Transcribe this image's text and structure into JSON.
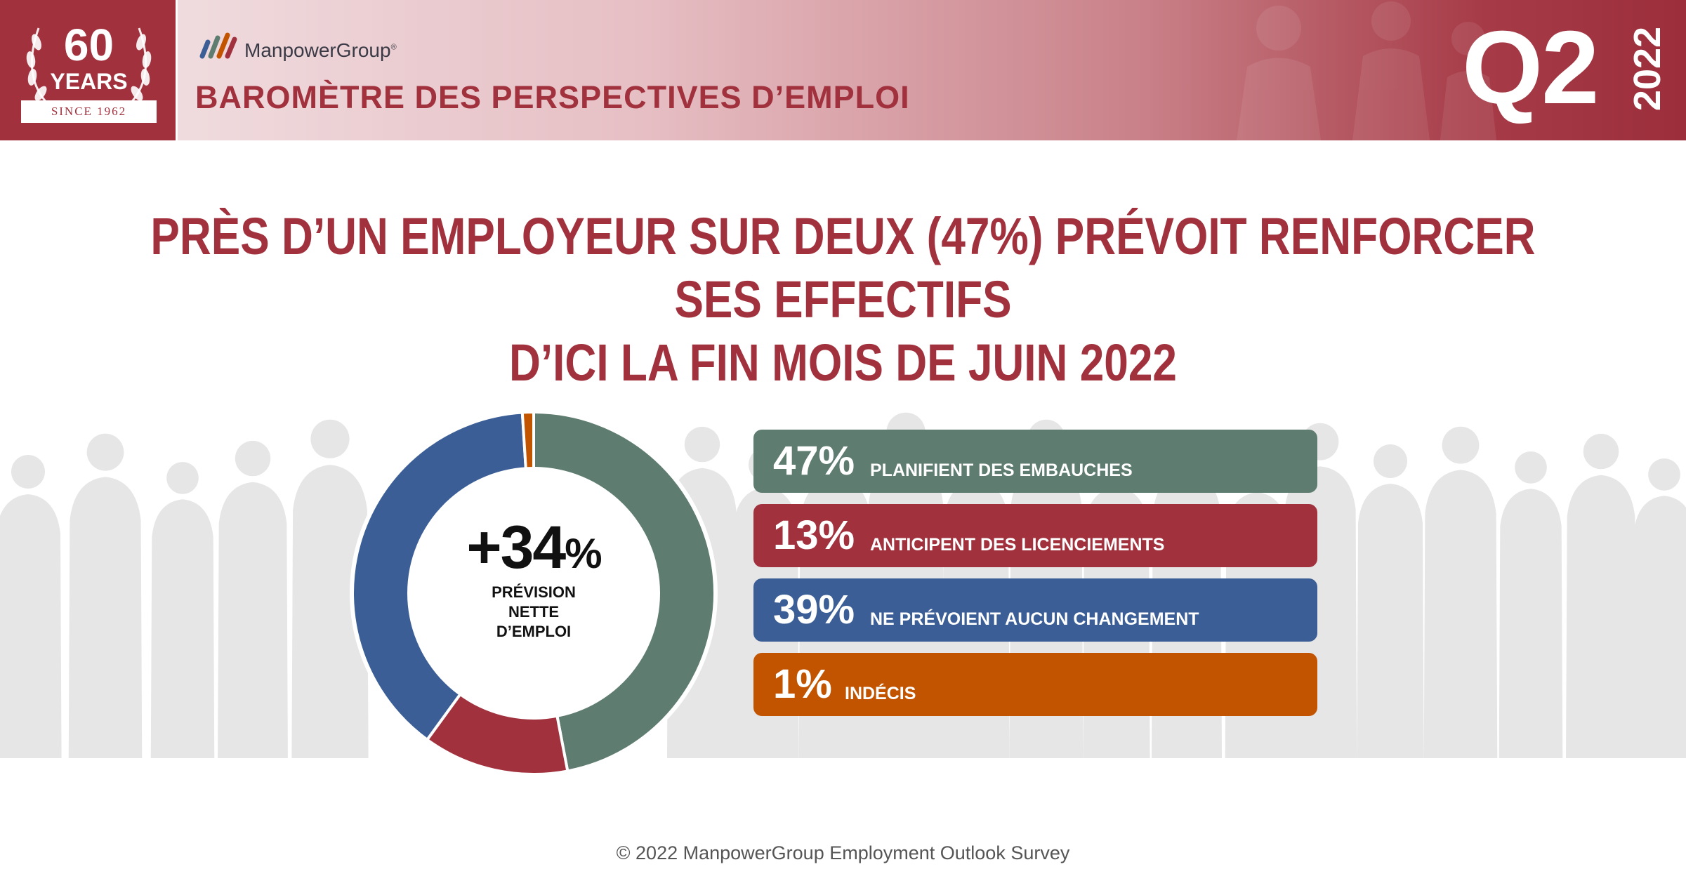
{
  "header": {
    "badge": {
      "number": "60",
      "years": "YEARS",
      "since": "SINCE 1962"
    },
    "brand": "ManpowerGroup",
    "brand_mark": "®",
    "subtitle": "BAROMÈTRE DES PERSPECTIVES D’EMPLOI",
    "quarter": "Q2",
    "year": "2022"
  },
  "headline": {
    "line1": "PRÈS D’UN EMPLOYEUR SUR DEUX (47%) PRÉVOIT RENFORCER SES EFFECTIFS",
    "line2": "D’ICI LA FIN MOIS DE JUIN 2022"
  },
  "center": {
    "value": "+34",
    "unit": "%",
    "label_line1": "PRÉVISION",
    "label_line2": "NETTE",
    "label_line3": "D’EMPLOI"
  },
  "chart_data": {
    "type": "pie",
    "donut": true,
    "title": "",
    "unit": "%",
    "slices": [
      {
        "label": "PLANIFIENT DES EMBAUCHES",
        "value": 47,
        "display": "47%",
        "color": "#5e7c6f"
      },
      {
        "label": "ANTICIPENT DES LICENCIEMENTS",
        "value": 13,
        "display": "13%",
        "color": "#a2313e"
      },
      {
        "label": "NE PRÉVOIENT AUCUN CHANGEMENT",
        "value": 39,
        "display": "39%",
        "color": "#3a5e95"
      },
      {
        "label": "INDÉCIS",
        "value": 1,
        "display": "1%",
        "color": "#c25400"
      }
    ]
  },
  "colors": {
    "brand_red": "#a2313e",
    "logo_blue": "#3a5e95",
    "logo_green": "#5e7c6f",
    "logo_orange": "#c25400"
  },
  "footer": "© 2022 ManpowerGroup Employment Outlook Survey"
}
